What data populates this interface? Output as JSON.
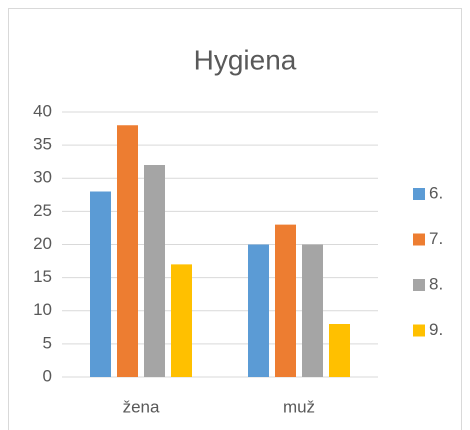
{
  "chart_data": {
    "type": "bar",
    "title": "Hygiena",
    "categories": [
      "žena",
      "muž"
    ],
    "series": [
      {
        "name": "6.",
        "color": "#5b9bd5",
        "values": [
          28,
          20
        ]
      },
      {
        "name": "7.",
        "color": "#ed7d31",
        "values": [
          38,
          23
        ]
      },
      {
        "name": "8.",
        "color": "#a5a5a5",
        "values": [
          32,
          20
        ]
      },
      {
        "name": "9.",
        "color": "#ffc000",
        "values": [
          17,
          8
        ]
      }
    ],
    "ylim": [
      0,
      40
    ],
    "yticks": [
      0,
      5,
      10,
      15,
      20,
      25,
      30,
      35,
      40
    ],
    "grid": true,
    "legend": "right"
  }
}
